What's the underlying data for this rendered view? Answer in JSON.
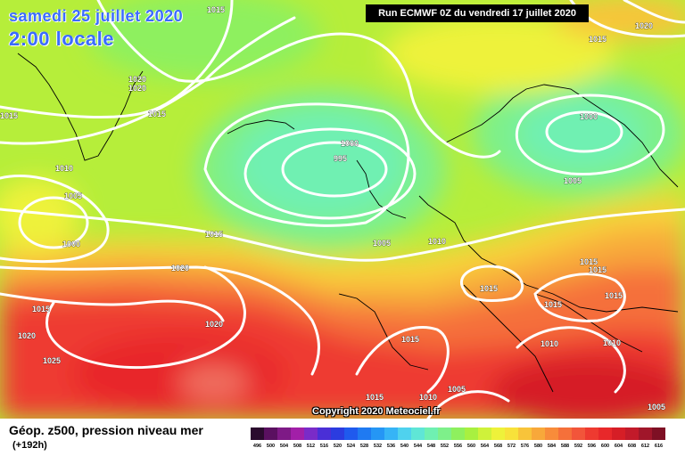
{
  "header": {
    "date_line": "samedi 25 juillet 2020",
    "time_line": "2:00 locale",
    "run": "Run ECMWF 0Z du vendredi 17 juillet 2020",
    "copyright": "Copyright 2020 Meteociel.fr"
  },
  "legend": {
    "title": "Géop. z500, pression niveau mer",
    "subtitle": "(+192h)",
    "scale": [
      {
        "label": "496",
        "color": "#2b0a2e"
      },
      {
        "label": "500",
        "color": "#5a1060"
      },
      {
        "label": "504",
        "color": "#7e1a86"
      },
      {
        "label": "508",
        "color": "#a21fa8"
      },
      {
        "label": "512",
        "color": "#7a2bc8"
      },
      {
        "label": "516",
        "color": "#4a2fd6"
      },
      {
        "label": "520",
        "color": "#2b3ce0"
      },
      {
        "label": "524",
        "color": "#1f5aee"
      },
      {
        "label": "528",
        "color": "#1f7af2"
      },
      {
        "label": "532",
        "color": "#2596f5"
      },
      {
        "label": "536",
        "color": "#36b4f6"
      },
      {
        "label": "540",
        "color": "#4fd2ee"
      },
      {
        "label": "544",
        "color": "#5fe6d6"
      },
      {
        "label": "548",
        "color": "#6ff0b2"
      },
      {
        "label": "552",
        "color": "#7ef08a"
      },
      {
        "label": "556",
        "color": "#8ef05e"
      },
      {
        "label": "560",
        "color": "#a8f040"
      },
      {
        "label": "564",
        "color": "#cff23a"
      },
      {
        "label": "568",
        "color": "#eef23a"
      },
      {
        "label": "572",
        "color": "#f8e23a"
      },
      {
        "label": "576",
        "color": "#f8c43a"
      },
      {
        "label": "580",
        "color": "#f8a83a"
      },
      {
        "label": "584",
        "color": "#f88c3a"
      },
      {
        "label": "588",
        "color": "#f5703a"
      },
      {
        "label": "592",
        "color": "#f2553a"
      },
      {
        "label": "596",
        "color": "#ee3a30"
      },
      {
        "label": "600",
        "color": "#e8282a"
      },
      {
        "label": "604",
        "color": "#d61e26"
      },
      {
        "label": "608",
        "color": "#c21a2a"
      },
      {
        "label": "612",
        "color": "#a0162a"
      },
      {
        "label": "616",
        "color": "#7e1024"
      }
    ]
  },
  "map": {
    "isobar_labels": [
      "1015",
      "1020",
      "1020",
      "1015",
      "1015",
      "1010",
      "1005",
      "1000",
      "1015",
      "1020",
      "1015",
      "1020",
      "1020",
      "1025",
      "1000",
      "995",
      "1005",
      "1010",
      "1015",
      "1015",
      "1015",
      "1015",
      "1015",
      "1010",
      "1010",
      "1015",
      "1015",
      "1010",
      "1005",
      "1005",
      "1000",
      "1005",
      "1020",
      "1015"
    ],
    "colors": {
      "isobar": "#ffffff",
      "coastline": "#000000",
      "low_z500": "#6ef0a8",
      "high_z500": "#e8282a"
    }
  }
}
